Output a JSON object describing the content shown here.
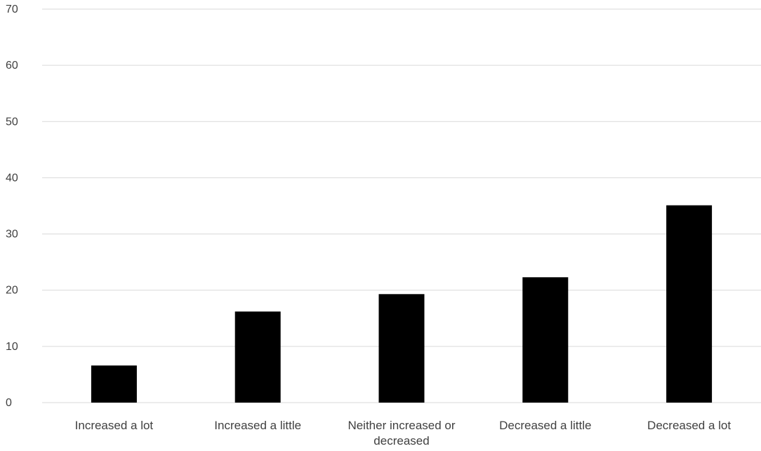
{
  "chart_data": {
    "type": "bar",
    "title": "",
    "xlabel": "",
    "ylabel": "",
    "categories": [
      "Increased a lot",
      "Increased a little",
      "Neither increased or decreased",
      "Decreased a little",
      "Decreased a lot"
    ],
    "category_lines": [
      [
        "Increased a lot"
      ],
      [
        "Increased a little"
      ],
      [
        "Neither increased or",
        "decreased"
      ],
      [
        "Decreased a little"
      ],
      [
        "Decreased a lot"
      ]
    ],
    "values": [
      6.6,
      16.2,
      19.3,
      22.3,
      35.1
    ],
    "ylim": [
      0,
      70
    ],
    "yticks": [
      0,
      10,
      20,
      30,
      40,
      50,
      60,
      70
    ],
    "ytick_labels": [
      "0",
      "10",
      "20",
      "30",
      "40",
      "50",
      "60",
      "70"
    ],
    "grid": true,
    "legend": "none",
    "bar_color": "#000000",
    "grid_color": "#d9d9d9",
    "text_color": "#404040"
  }
}
